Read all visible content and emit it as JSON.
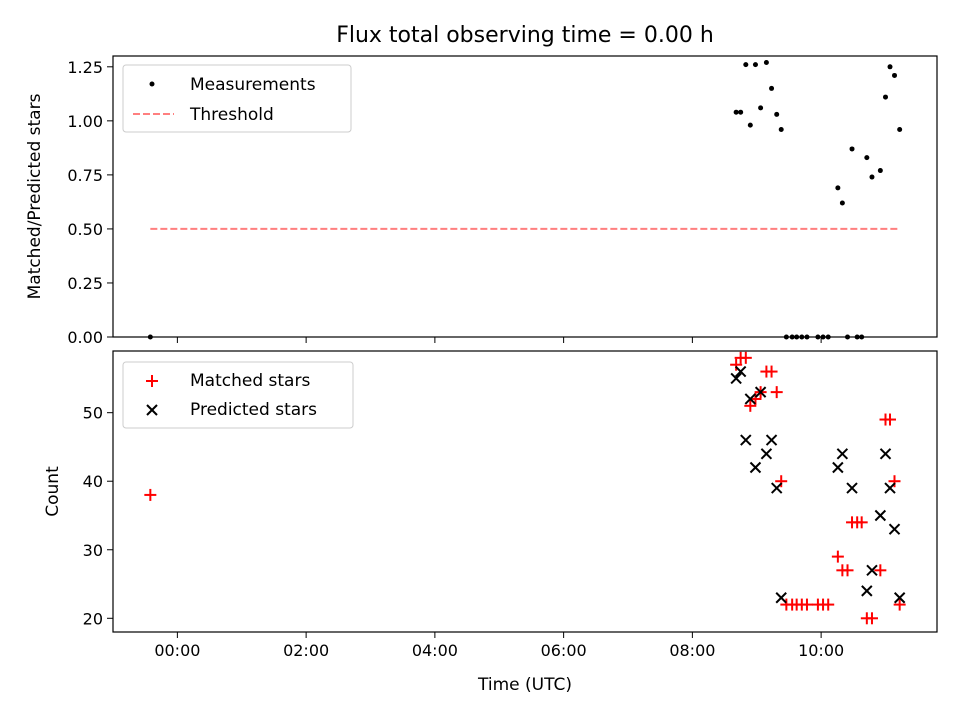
{
  "chart_data": [
    {
      "type": "scatter",
      "title": "Flux total observing time = 0.00 h",
      "xlabel": "",
      "ylabel": "Matched/Predicted stars",
      "xlim": [
        -1.0,
        11.8
      ],
      "ylim": [
        0.0,
        1.3
      ],
      "xticks": [
        0,
        2,
        4,
        6,
        8,
        10
      ],
      "yticks": [
        0.0,
        0.25,
        0.5,
        0.75,
        1.0,
        1.25
      ],
      "ytick_labels": [
        "0.00",
        "0.25",
        "0.50",
        "0.75",
        "1.00",
        "1.25"
      ],
      "legend": "top-left",
      "series": [
        {
          "name": "Measurements",
          "marker": "dot",
          "color": "#000000",
          "x": [
            -0.42,
            8.68,
            8.75,
            8.83,
            8.9,
            8.98,
            9.06,
            9.15,
            9.23,
            9.31,
            9.38,
            9.46,
            9.55,
            9.62,
            9.7,
            9.78,
            9.95,
            10.03,
            10.11,
            10.26,
            10.33,
            10.41,
            10.48,
            10.56,
            10.63,
            10.71,
            10.79,
            10.92,
            11.0,
            11.07,
            11.14,
            11.22
          ],
          "y": [
            0.0,
            1.04,
            1.04,
            1.26,
            0.98,
            1.26,
            1.06,
            1.27,
            1.15,
            1.03,
            0.96,
            0.0,
            0.0,
            0.0,
            0.0,
            0.0,
            0.0,
            0.0,
            0.0,
            0.69,
            0.62,
            0.0,
            0.87,
            0.0,
            0.0,
            0.83,
            0.74,
            0.77,
            1.11,
            1.25,
            1.21,
            0.96
          ]
        },
        {
          "name": "Threshold",
          "marker": "dashed-line",
          "color": "#ff7f7f",
          "x": [
            -0.42,
            11.22
          ],
          "y": [
            0.5,
            0.5
          ]
        }
      ]
    },
    {
      "type": "scatter",
      "title": "",
      "xlabel": "Time (UTC)",
      "ylabel": "Count",
      "xlim": [
        -1.0,
        11.8
      ],
      "ylim": [
        18,
        59
      ],
      "xticks": [
        0,
        2,
        4,
        6,
        8,
        10
      ],
      "xtick_labels": [
        "00:00",
        "02:00",
        "04:00",
        "06:00",
        "08:00",
        "10:00"
      ],
      "yticks": [
        20,
        30,
        40,
        50
      ],
      "ytick_labels": [
        "20",
        "30",
        "40",
        "50"
      ],
      "legend": "top-left",
      "series": [
        {
          "name": "Matched stars",
          "marker": "plus",
          "color": "#ff0000",
          "x": [
            -0.42,
            8.68,
            8.75,
            8.83,
            8.9,
            8.98,
            9.06,
            9.15,
            9.23,
            9.31,
            9.38,
            9.46,
            9.55,
            9.62,
            9.7,
            9.78,
            9.95,
            10.03,
            10.11,
            10.26,
            10.33,
            10.41,
            10.48,
            10.56,
            10.63,
            10.71,
            10.79,
            10.92,
            11.0,
            11.07,
            11.14,
            11.22
          ],
          "y": [
            38,
            57,
            58,
            58,
            51,
            52,
            53,
            56,
            56,
            53,
            40,
            22,
            22,
            22,
            22,
            22,
            22,
            22,
            22,
            29,
            27,
            27,
            34,
            34,
            34,
            20,
            20,
            27,
            49,
            49,
            40,
            22
          ]
        },
        {
          "name": "Predicted stars",
          "marker": "x",
          "color": "#000000",
          "x": [
            8.68,
            8.75,
            8.83,
            8.9,
            8.98,
            9.06,
            9.15,
            9.23,
            9.31,
            9.38,
            10.26,
            10.33,
            10.48,
            10.71,
            10.79,
            10.92,
            11.0,
            11.07,
            11.14,
            11.22
          ],
          "y": [
            55,
            56,
            46,
            52,
            42,
            53,
            44,
            46,
            39,
            23,
            42,
            44,
            39,
            24,
            27,
            35,
            44,
            39,
            33,
            23
          ]
        }
      ]
    }
  ]
}
